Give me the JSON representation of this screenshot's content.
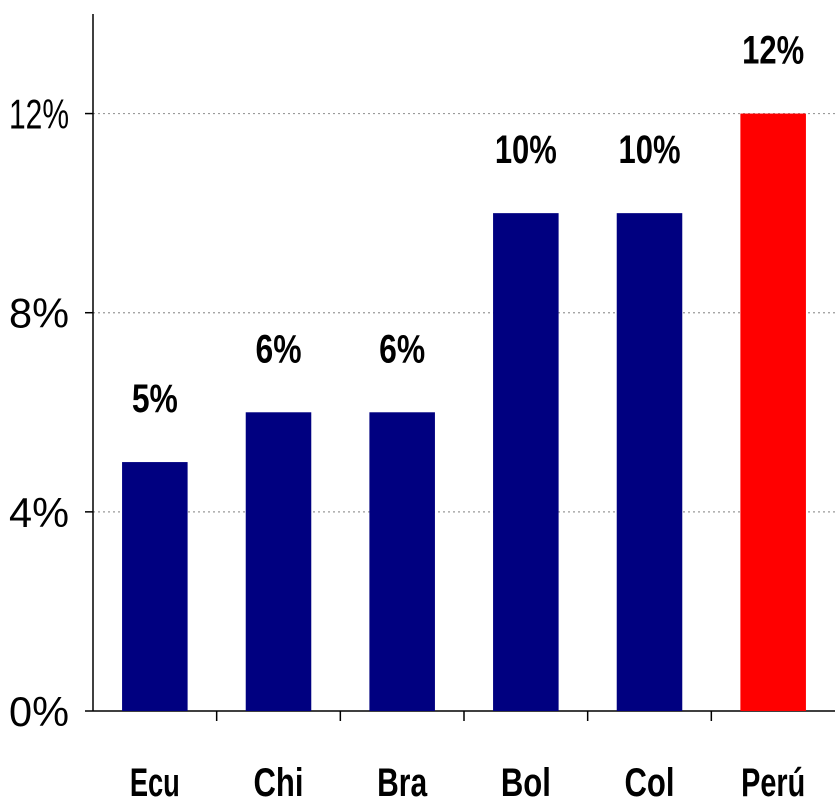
{
  "chart_data": {
    "type": "bar",
    "categories": [
      "Ecu",
      "Chi",
      "Bra",
      "Bol",
      "Col",
      "Perú"
    ],
    "values": [
      5,
      6,
      6,
      10,
      10,
      12
    ],
    "data_labels": [
      "5%",
      "6%",
      "6%",
      "10%",
      "10%",
      "12%"
    ],
    "bar_colors": [
      "#000080",
      "#000080",
      "#000080",
      "#000080",
      "#000080",
      "#ff0000"
    ],
    "ylim": [
      0,
      14
    ],
    "yticks": [
      0,
      4,
      8,
      12
    ],
    "ytick_labels": [
      "0%",
      "4%",
      "8%",
      "12%"
    ],
    "grid": "horizontal dotted",
    "title": "",
    "xlabel": "",
    "ylabel": ""
  }
}
